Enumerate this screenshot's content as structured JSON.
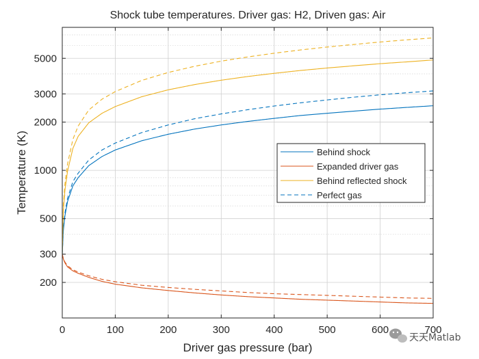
{
  "chart_data": {
    "type": "line",
    "title": "Shock tube temperatures. Driver gas: H2, Driven gas: Air",
    "xlabel": "Driver gas pressure (bar)",
    "ylabel": "Temperature (K)",
    "xlim": [
      0,
      700
    ],
    "ylim": [
      120,
      7800
    ],
    "yscale": "log",
    "grid": "on",
    "minor_grid": "on",
    "x_ticks": [
      0,
      100,
      200,
      300,
      400,
      500,
      600,
      700
    ],
    "x_tick_labels": [
      "0",
      "100",
      "200",
      "300",
      "400",
      "500",
      "600",
      "700"
    ],
    "y_ticks": [
      200,
      300,
      500,
      1000,
      2000,
      3000,
      5000
    ],
    "y_tick_labels": [
      "200",
      "300",
      "500",
      "1000",
      "2000",
      "3000",
      "5000"
    ],
    "legend_position": "center-right",
    "legend": [
      {
        "label": "Behind shock",
        "color": "#0072BD",
        "style": "solid"
      },
      {
        "label": "Expanded driver gas",
        "color": "#D95319",
        "style": "solid"
      },
      {
        "label": "Behind reflected shock",
        "color": "#EDB120",
        "style": "solid"
      },
      {
        "label": "Perfect gas",
        "color": "#0072BD",
        "style": "dashed"
      }
    ],
    "series": [
      {
        "color": "#0072BD",
        "style": "solid",
        "x": [
          0,
          2,
          5,
          10,
          20,
          30,
          50,
          75,
          100,
          150,
          200,
          250,
          300,
          350,
          400,
          450,
          500,
          550,
          600,
          650,
          700
        ],
        "y": [
          300,
          420,
          520,
          640,
          800,
          900,
          1070,
          1220,
          1340,
          1530,
          1680,
          1810,
          1920,
          2020,
          2110,
          2200,
          2270,
          2340,
          2410,
          2470,
          2530
        ]
      },
      {
        "color": "#D95319",
        "style": "solid",
        "x": [
          0,
          2,
          5,
          10,
          20,
          30,
          50,
          75,
          100,
          150,
          200,
          250,
          300,
          350,
          400,
          450,
          500,
          550,
          600,
          650,
          700
        ],
        "y": [
          300,
          280,
          265,
          250,
          236,
          228,
          215,
          203,
          195,
          185,
          178,
          172,
          167,
          163,
          160,
          157,
          155,
          153,
          151,
          149,
          148
        ]
      },
      {
        "color": "#EDB120",
        "style": "solid",
        "x": [
          0,
          2,
          5,
          10,
          20,
          30,
          50,
          75,
          100,
          150,
          200,
          250,
          300,
          350,
          400,
          450,
          500,
          550,
          600,
          650,
          700
        ],
        "y": [
          300,
          560,
          750,
          990,
          1370,
          1630,
          1980,
          2270,
          2500,
          2880,
          3180,
          3430,
          3650,
          3850,
          4030,
          4200,
          4350,
          4490,
          4630,
          4750,
          4880
        ]
      },
      {
        "color": "#0072BD",
        "style": "dashed",
        "x": [
          0,
          2,
          5,
          10,
          20,
          30,
          50,
          75,
          100,
          150,
          200,
          250,
          300,
          350,
          400,
          450,
          500,
          550,
          600,
          650,
          700
        ],
        "y": [
          300,
          430,
          540,
          670,
          850,
          960,
          1160,
          1340,
          1480,
          1720,
          1920,
          2100,
          2250,
          2390,
          2520,
          2640,
          2750,
          2860,
          2960,
          3050,
          3130
        ]
      },
      {
        "color": "#D95319",
        "style": "dashed",
        "x": [
          0,
          2,
          5,
          10,
          20,
          30,
          50,
          75,
          100,
          150,
          200,
          250,
          300,
          350,
          400,
          450,
          500,
          550,
          600,
          650,
          700
        ],
        "y": [
          300,
          282,
          268,
          254,
          240,
          232,
          220,
          209,
          202,
          192,
          186,
          181,
          177,
          173,
          170,
          168,
          166,
          164,
          162,
          160,
          159
        ]
      },
      {
        "color": "#EDB120",
        "style": "dashed",
        "x": [
          0,
          2,
          5,
          10,
          20,
          30,
          50,
          75,
          100,
          150,
          200,
          250,
          300,
          350,
          400,
          450,
          500,
          550,
          600,
          650,
          700
        ],
        "y": [
          300,
          600,
          820,
          1100,
          1560,
          1890,
          2380,
          2780,
          3100,
          3640,
          4080,
          4460,
          4800,
          5100,
          5380,
          5640,
          5880,
          6100,
          6320,
          6520,
          6700
        ]
      }
    ]
  },
  "watermark": {
    "text": "天天Matlab",
    "icon": "wechat-icon"
  }
}
